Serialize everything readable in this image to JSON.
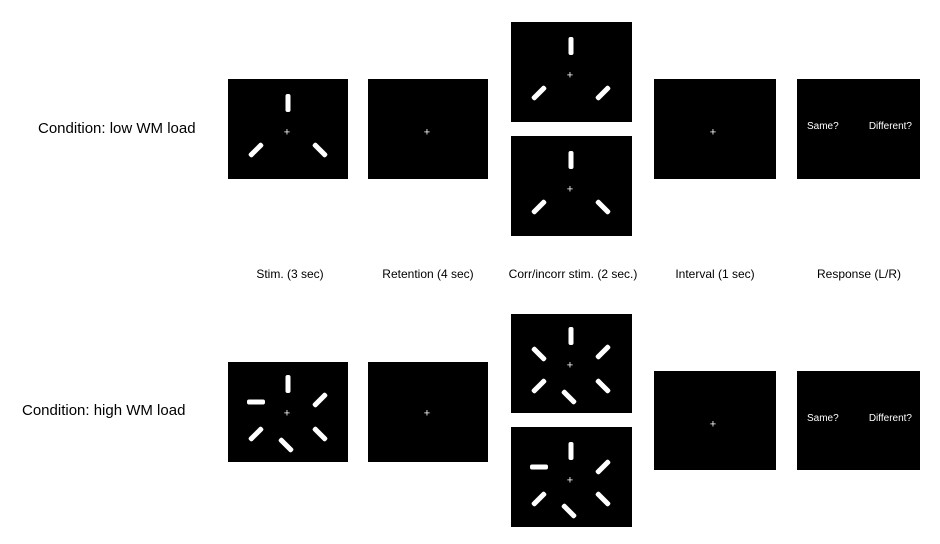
{
  "conditions": [
    {
      "label": "Condition: low WM load"
    },
    {
      "label": "Condition: high WM load"
    }
  ],
  "phases": [
    {
      "label": "Stim. (3 sec)"
    },
    {
      "label": "Retention (4 sec)"
    },
    {
      "label": "Corr/incorr stim. (2 sec.)"
    },
    {
      "label": "Interval (1 sec)"
    },
    {
      "label": "Response (L/R)"
    }
  ],
  "fixation": "+",
  "response": {
    "left": "Same?",
    "right": "Different?"
  }
}
